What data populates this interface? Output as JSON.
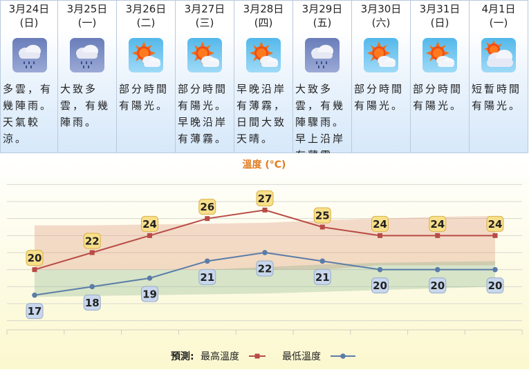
{
  "colors": {
    "max_series": "#b84b45",
    "min_series": "#5a7ca8",
    "title": "#e07b20",
    "max_label_bg": "#f8df8a",
    "min_label_bg": "#c8d7ec"
  },
  "days": [
    {
      "date": "3月24日",
      "weekday": "(日)",
      "icon": "cloud-rain-icon",
      "desc": "多雲，有幾陣雨。天氣較涼。"
    },
    {
      "date": "3月25日",
      "weekday": "(一)",
      "icon": "cloud-rain-icon",
      "desc": "大致多雲，有幾陣雨。"
    },
    {
      "date": "3月26日",
      "weekday": "(二)",
      "icon": "sun-cloud-icon",
      "desc": "部分時間有陽光。"
    },
    {
      "date": "3月27日",
      "weekday": "(三)",
      "icon": "sun-cloud-icon",
      "desc": "部分時間有陽光。早晚沿岸有薄霧。"
    },
    {
      "date": "3月28日",
      "weekday": "(四)",
      "icon": "sun-cloud-icon",
      "desc": "早晚沿岸有薄霧，日間大致天晴。"
    },
    {
      "date": "3月29日",
      "weekday": "(五)",
      "icon": "cloud-rain-icon",
      "desc": "大致多雲，有幾陣驟雨。早上沿岸有薄霧。"
    },
    {
      "date": "3月30日",
      "weekday": "(六)",
      "icon": "sun-cloud-icon",
      "desc": "部分時間有陽光。"
    },
    {
      "date": "3月31日",
      "weekday": "(日)",
      "icon": "sun-cloud-icon",
      "desc": "部分時間有陽光。"
    },
    {
      "date": "4月1日",
      "weekday": "(一)",
      "icon": "sun-big-cloud-icon",
      "desc": "短暫時間有陽光。"
    }
  ],
  "chart_data": {
    "type": "line",
    "title": "溫度 (°C)",
    "categories": [
      "3月24日",
      "3月25日",
      "3月26日",
      "3月27日",
      "3月28日",
      "3月29日",
      "3月30日",
      "3月31日",
      "4月1日"
    ],
    "series": [
      {
        "name": "最高溫度",
        "values": [
          20,
          22,
          24,
          26,
          27,
          25,
          24,
          24,
          24
        ]
      },
      {
        "name": "最低溫度",
        "values": [
          17,
          18,
          19,
          21,
          22,
          21,
          20,
          20,
          20
        ]
      }
    ],
    "normal_max_band": {
      "low": [
        20,
        20,
        20,
        20,
        20,
        20,
        20.5,
        20.5,
        20.5
      ],
      "high": [
        25.2,
        25.2,
        25.3,
        25.4,
        25.5,
        25.8,
        26.0,
        26.2,
        26.3
      ]
    },
    "normal_min_band": {
      "low": [
        16.8,
        16.9,
        17.0,
        17.1,
        17.2,
        17.4,
        17.6,
        17.8,
        18.0
      ],
      "high": [
        20,
        20,
        20,
        20,
        20.3,
        20.6,
        20.8,
        20.9,
        21.0
      ]
    },
    "ylim": [
      13,
      31
    ],
    "legend": {
      "prefix": "預測:",
      "items": [
        "最高溫度",
        "最低溫度"
      ],
      "position": "bottom"
    }
  }
}
